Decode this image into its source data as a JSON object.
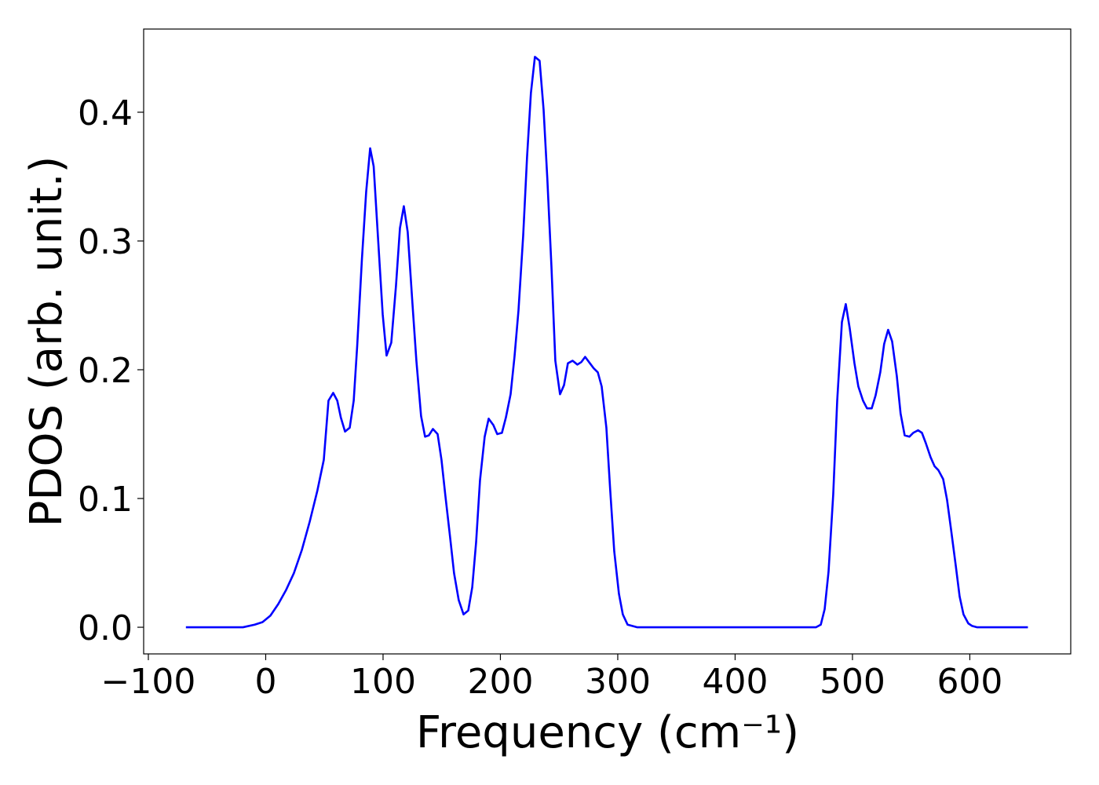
{
  "chart_data": {
    "type": "line",
    "xlabel": "Frequency (cm⁻¹)",
    "ylabel": "PDOS (arb. unit.)",
    "xlim": [
      -104,
      686
    ],
    "ylim": [
      -0.0207,
      0.4646
    ],
    "xticks": [
      {
        "value": -100,
        "label": "−100"
      },
      0,
      100,
      200,
      300,
      400,
      500,
      600
    ],
    "yticks": [
      {
        "value": 0,
        "label": "0.0"
      },
      0.1,
      0.2,
      0.3,
      0.4
    ],
    "grid": false,
    "series": [
      {
        "color": "#0000ff",
        "x": [
          -68,
          -19.4,
          -9.4,
          -2.7,
          4,
          10.7,
          17.4,
          24,
          30.8,
          37.5,
          44,
          49.5,
          53.5,
          57.5,
          61,
          64,
          67.6,
          71.6,
          75,
          78,
          82,
          85.6,
          89,
          92,
          95.6,
          99.7,
          103,
          107,
          111,
          114.4,
          117.7,
          121,
          125,
          128.4,
          132.4,
          135.8,
          139,
          142.5,
          146.5,
          149.8,
          153,
          157,
          160.5,
          164.5,
          168.6,
          172.6,
          176,
          179.3,
          182.6,
          186.6,
          190,
          194,
          197.3,
          201.3,
          204.7,
          208.7,
          212,
          215.4,
          219.4,
          222.7,
          226,
          229.4,
          233.4,
          236.8,
          240,
          243.5,
          246.8,
          250.8,
          254.2,
          257.5,
          261.5,
          265.6,
          269,
          272.2,
          276.3,
          279.6,
          283,
          286.3,
          290.3,
          293.6,
          297,
          301,
          304.3,
          308.4,
          312.4,
          316.4,
          469,
          473,
          476.3,
          479.6,
          483.6,
          487,
          491,
          494.3,
          497.7,
          501.7,
          505,
          509,
          512.4,
          516.4,
          519.7,
          523.7,
          527,
          530.4,
          533.8,
          537.8,
          541,
          544.5,
          548.5,
          551.8,
          555.9,
          559.2,
          562.5,
          566.6,
          570,
          573.2,
          577.3,
          580.6,
          584,
          588,
          591.3,
          594.6,
          598.7,
          602,
          606,
          649.5
        ],
        "values": [
          0,
          0,
          0.002,
          0.004,
          0.009,
          0.018,
          0.029,
          0.042,
          0.06,
          0.082,
          0.106,
          0.13,
          0.176,
          0.182,
          0.176,
          0.163,
          0.152,
          0.155,
          0.176,
          0.219,
          0.286,
          0.338,
          0.372,
          0.358,
          0.304,
          0.243,
          0.211,
          0.221,
          0.265,
          0.31,
          0.327,
          0.307,
          0.252,
          0.207,
          0.164,
          0.148,
          0.149,
          0.154,
          0.15,
          0.13,
          0.103,
          0.071,
          0.042,
          0.021,
          0.01,
          0.013,
          0.031,
          0.066,
          0.114,
          0.148,
          0.162,
          0.157,
          0.15,
          0.151,
          0.163,
          0.181,
          0.21,
          0.246,
          0.304,
          0.365,
          0.415,
          0.443,
          0.44,
          0.402,
          0.348,
          0.28,
          0.207,
          0.181,
          0.188,
          0.205,
          0.207,
          0.204,
          0.206,
          0.21,
          0.205,
          0.201,
          0.198,
          0.187,
          0.155,
          0.106,
          0.059,
          0.026,
          0.01,
          0.002,
          0.001,
          0,
          0,
          0.002,
          0.014,
          0.043,
          0.103,
          0.176,
          0.237,
          0.251,
          0.232,
          0.205,
          0.187,
          0.176,
          0.17,
          0.17,
          0.18,
          0.198,
          0.22,
          0.231,
          0.222,
          0.195,
          0.166,
          0.149,
          0.148,
          0.151,
          0.153,
          0.151,
          0.143,
          0.132,
          0.125,
          0.122,
          0.115,
          0.099,
          0.076,
          0.048,
          0.024,
          0.01,
          0.003,
          0.001,
          0,
          0
        ]
      }
    ]
  }
}
